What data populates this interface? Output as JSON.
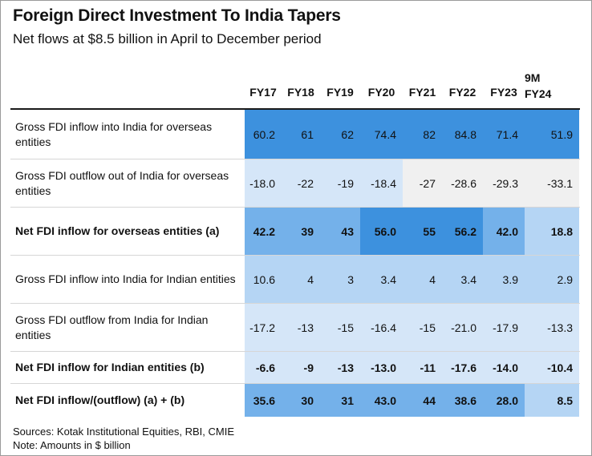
{
  "title": "Foreign Direct Investment To India Tapers",
  "subtitle": "Net flows at $8.5 billion in April to December period",
  "chart_data": {
    "type": "table",
    "columns": [
      "FY17",
      "FY18",
      "FY19",
      "FY20",
      "FY21",
      "FY22",
      "FY23",
      "9M FY24"
    ],
    "column_header_lines": [
      [
        "FY17"
      ],
      [
        "FY18"
      ],
      [
        "FY19"
      ],
      [
        "FY20"
      ],
      [
        "FY21"
      ],
      [
        "FY22"
      ],
      [
        "FY23"
      ],
      [
        "9M",
        "FY24"
      ]
    ],
    "rows": [
      {
        "label": "Gross FDI inflow into India for overseas entities",
        "bold": false,
        "values": [
          "60.2",
          "61",
          "62",
          "74.4",
          "82",
          "84.8",
          "71.4",
          "51.9"
        ]
      },
      {
        "label": "Gross FDI outflow out of India for overseas entities",
        "bold": false,
        "values": [
          "-18.0",
          "-22",
          "-19",
          "-18.4",
          "-27",
          "-28.6",
          "-29.3",
          "-33.1"
        ]
      },
      {
        "label": "Net FDI inflow for overseas entities (a)",
        "bold": true,
        "values": [
          "42.2",
          "39",
          "43",
          "56.0",
          "55",
          "56.2",
          "42.0",
          "18.8"
        ]
      },
      {
        "label": "Gross FDI inflow into India for Indian entities",
        "bold": false,
        "values": [
          "10.6",
          "4",
          "3",
          "3.4",
          "4",
          "3.4",
          "3.9",
          "2.9"
        ]
      },
      {
        "label": "Gross FDI outflow from India for Indian entities",
        "bold": false,
        "values": [
          "-17.2",
          "-13",
          "-15",
          "-16.4",
          "-15",
          "-21.0",
          "-17.9",
          "-13.3"
        ]
      },
      {
        "label": "Net FDI inflow for Indian entities (b)",
        "bold": true,
        "values": [
          "-6.6",
          "-9",
          "-13",
          "-13.0",
          "-11",
          "-17.6",
          "-14.0",
          "-10.4"
        ]
      },
      {
        "label": "Net FDI inflow/(outflow) (a) + (b)",
        "bold": true,
        "values": [
          "35.6",
          "30",
          "31",
          "43.0",
          "44",
          "38.6",
          "28.0",
          "8.5"
        ]
      }
    ],
    "cell_colors": [
      [
        "#3d91de",
        "#3d91de",
        "#3d91de",
        "#3d91de",
        "#3d91de",
        "#3d91de",
        "#3d91de",
        "#3d91de"
      ],
      [
        "#d5e6f8",
        "#d5e6f8",
        "#d5e6f8",
        "#d5e6f8",
        "#f0f0f0",
        "#f0f0f0",
        "#f0f0f0",
        "#f0f0f0"
      ],
      [
        "#74b1ea",
        "#74b1ea",
        "#74b1ea",
        "#3d91de",
        "#3d91de",
        "#3d91de",
        "#74b1ea",
        "#b5d5f4"
      ],
      [
        "#b5d5f4",
        "#b5d5f4",
        "#b5d5f4",
        "#b5d5f4",
        "#b5d5f4",
        "#b5d5f4",
        "#b5d5f4",
        "#b5d5f4"
      ],
      [
        "#d5e6f8",
        "#d5e6f8",
        "#d5e6f8",
        "#d5e6f8",
        "#d5e6f8",
        "#d5e6f8",
        "#d5e6f8",
        "#d5e6f8"
      ],
      [
        "#d5e6f8",
        "#d5e6f8",
        "#d5e6f8",
        "#d5e6f8",
        "#d5e6f8",
        "#d5e6f8",
        "#d5e6f8",
        "#d5e6f8"
      ],
      [
        "#74b1ea",
        "#74b1ea",
        "#74b1ea",
        "#74b1ea",
        "#74b1ea",
        "#74b1ea",
        "#74b1ea",
        "#b5d5f4"
      ]
    ]
  },
  "sources": "Sources: Kotak Institutional Equities, RBI, CMIE",
  "note": "Note: Amounts in $ billion"
}
